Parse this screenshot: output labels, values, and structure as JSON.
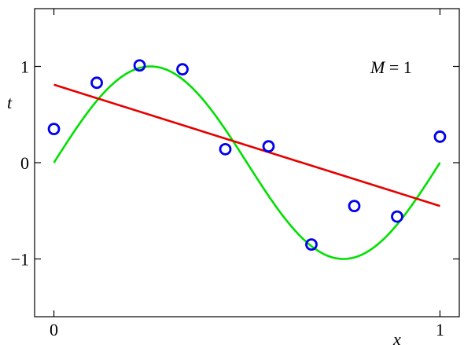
{
  "chart_data": {
    "type": "scatter",
    "title": "",
    "xlabel": "x",
    "ylabel": "t",
    "xlim": [
      -0.05,
      1.05
    ],
    "ylim": [
      -1.6,
      1.6
    ],
    "x_ticks": [
      0,
      1
    ],
    "x_tick_labels": [
      "0",
      "1"
    ],
    "y_ticks": [
      1,
      0,
      -1
    ],
    "y_tick_labels": [
      "1",
      "0",
      "−1"
    ],
    "grid": false,
    "annotation": {
      "var": "M",
      "eq": " = 1"
    },
    "colors": {
      "points": "#0000ee",
      "fit": "#e60000",
      "truth": "#00e000"
    },
    "series": [
      {
        "kind": "points",
        "x": [
          0.0,
          0.111,
          0.222,
          0.333,
          0.444,
          0.556,
          0.667,
          0.778,
          0.889,
          1.0
        ],
        "y": [
          0.35,
          0.83,
          1.01,
          0.97,
          0.14,
          0.17,
          -0.85,
          -0.45,
          -0.56,
          0.27
        ]
      },
      {
        "kind": "line",
        "x": [
          0,
          1
        ],
        "y": [
          0.81,
          -0.45
        ]
      },
      {
        "kind": "curve",
        "function": "sin(2*pi*x)",
        "x_range": [
          0,
          1
        ]
      }
    ]
  }
}
